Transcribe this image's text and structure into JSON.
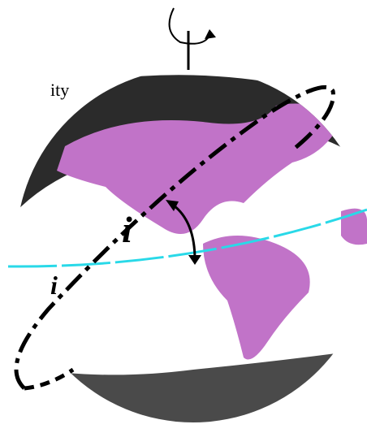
{
  "labels": {
    "top_text": "ity",
    "inclination_front": "i",
    "inclination_back": "i"
  }
}
